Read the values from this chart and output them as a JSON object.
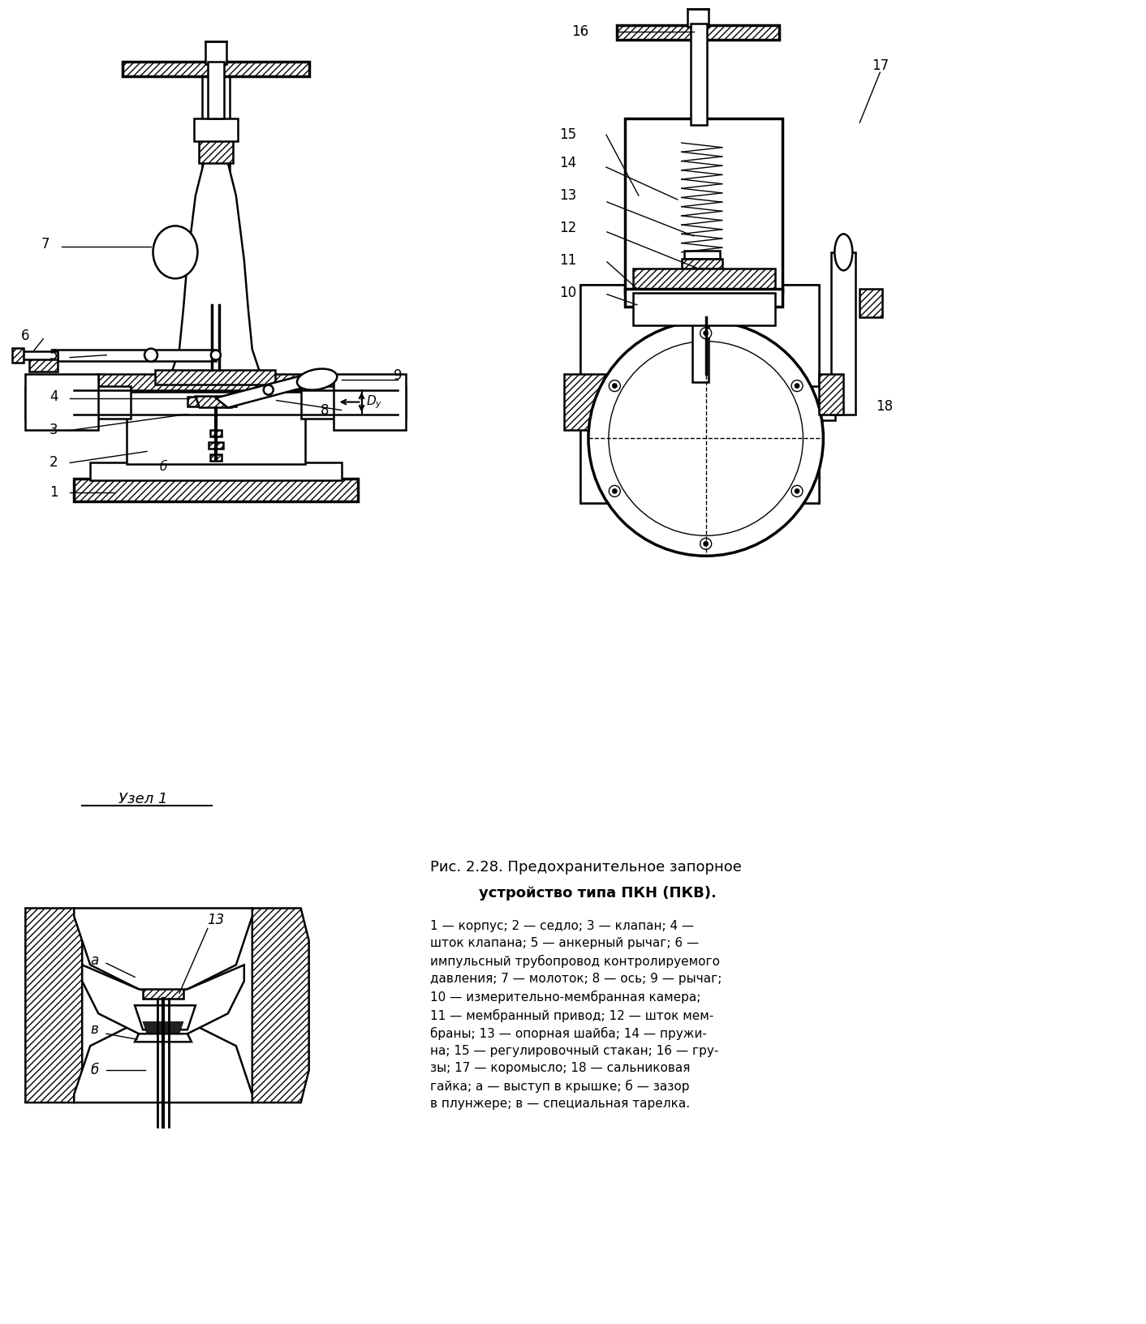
{
  "title": "",
  "background_color": "#ffffff",
  "line_color": "#000000",
  "hatch_color": "#000000",
  "fig_width": 14.12,
  "fig_height": 16.32,
  "caption_title": "Рис. 2.28. Предохранительное запорное\nустройство типа ПКН (ПКВ).",
  "caption_body": "1 — корпус; 2 — седло; 3 — клапан; 4 —\nшток клапана; 5 — анкерный рычаг; 6 —\nимпульсный трубопровод контролируемого\nдавления; 7 — молоток; 8 — ось; 9 — рычаг;\n10 — измерительно-мембранная камера;\n11 — мембранный привод; 12 — шток мем-\nбраны; 13 — опорная шайба; 14 — пружи-\nна; 15 — регулировочный стакан; 16 — гру-\nзы; 17 — коромысло; 18 — сальниковая\nгайка; а — выступ в крышке; б — зазор\nв плунжере; в — специальная тарелка.",
  "uzzel_label": "Узел 1",
  "dashed_line_color": "#555555",
  "gray_fill": "#d0d0d0",
  "hatch_fill": "#888888"
}
